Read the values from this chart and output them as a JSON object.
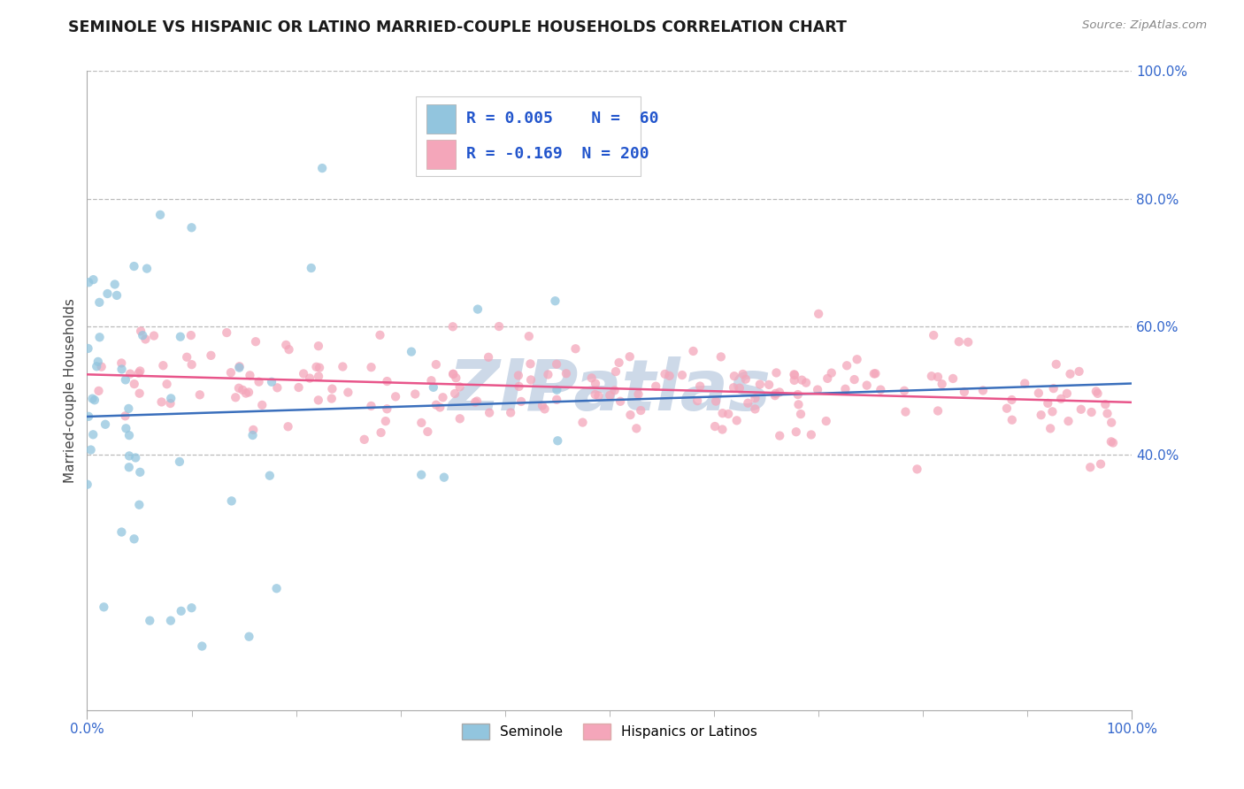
{
  "title": "SEMINOLE VS HISPANIC OR LATINO MARRIED-COUPLE HOUSEHOLDS CORRELATION CHART",
  "source_text": "Source: ZipAtlas.com",
  "ylabel": "Married-couple Households",
  "seminole_R": 0.005,
  "seminole_N": 60,
  "hispanic_R": -0.169,
  "hispanic_N": 200,
  "seminole_color": "#92c5de",
  "hispanic_color": "#f4a6ba",
  "seminole_line_color": "#3a6fbc",
  "hispanic_line_color": "#e8558a",
  "seminole_line_dash": "solid",
  "hispanic_line_dash": "solid",
  "ref_line_color": "#bbbbbb",
  "ref_line_dash": "dashed",
  "watermark_color": "#cdd9e8",
  "title_fontsize": 12.5,
  "axis_label_fontsize": 11,
  "tick_fontsize": 11,
  "tick_color": "#3366cc",
  "background_color": "#ffffff",
  "grid_color": "#cccccc",
  "xlim": [
    0.0,
    1.0
  ],
  "ylim": [
    0.0,
    1.0
  ],
  "yticks": [
    0.4,
    0.6,
    0.8,
    1.0
  ],
  "ytick_labels": [
    "40.0%",
    "60.0%",
    "80.0%",
    "100.0%"
  ],
  "xticks": [
    0.0,
    1.0
  ],
  "xtick_labels": [
    "0.0%",
    "100.0%"
  ]
}
